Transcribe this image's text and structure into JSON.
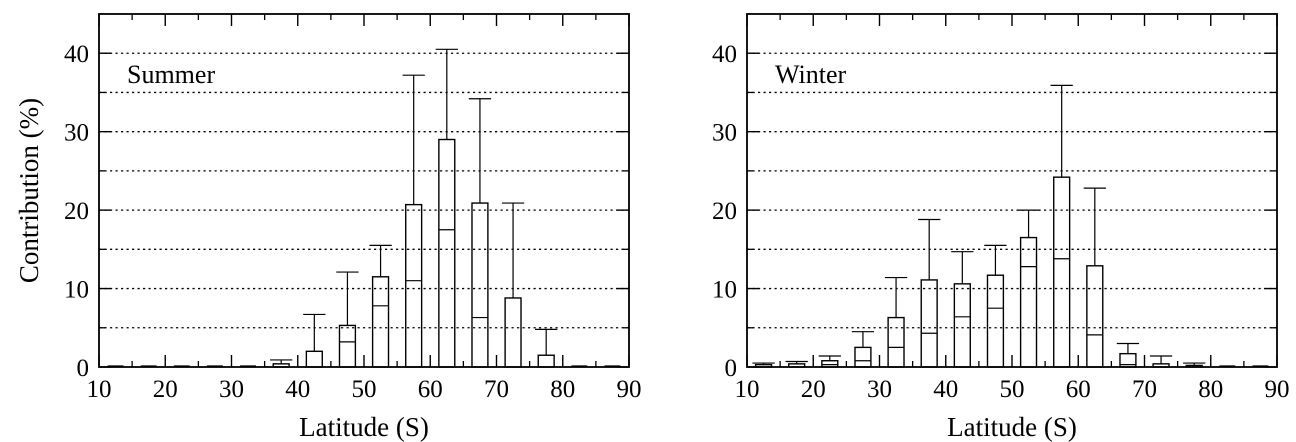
{
  "chart_data": [
    {
      "type": "bar",
      "panel_label": "Summer",
      "xlabel": "Latitude (S)",
      "ylabel": "Contribution (%)",
      "xlim": [
        10,
        90
      ],
      "ylim": [
        0,
        45
      ],
      "xticks": [
        10,
        20,
        30,
        40,
        50,
        60,
        70,
        80,
        90
      ],
      "yticks": [
        0,
        10,
        20,
        30,
        40
      ],
      "grid": "horizontal dotted every 5",
      "x": [
        12.5,
        17.5,
        22.5,
        27.5,
        32.5,
        37.5,
        42.5,
        47.5,
        52.5,
        57.5,
        62.5,
        67.5,
        72.5,
        77.5,
        82.5,
        87.5
      ],
      "values": [
        0,
        0,
        0,
        0,
        0,
        0.4,
        2.0,
        5.3,
        11.5,
        20.7,
        29.0,
        20.9,
        8.8,
        1.5,
        0,
        0
      ],
      "box_low": [
        0,
        0,
        0,
        0,
        0,
        0,
        0,
        3.2,
        7.8,
        11.0,
        17.5,
        6.3,
        0,
        0,
        0,
        0
      ],
      "err_high": [
        0,
        0,
        0,
        0,
        0,
        0.9,
        6.7,
        12.1,
        15.5,
        37.2,
        40.5,
        34.2,
        20.9,
        4.8,
        0,
        0
      ]
    },
    {
      "type": "bar",
      "panel_label": "Winter",
      "xlabel": "Latitude (S)",
      "ylabel": "",
      "xlim": [
        10,
        90
      ],
      "ylim": [
        0,
        45
      ],
      "xticks": [
        10,
        20,
        30,
        40,
        50,
        60,
        70,
        80,
        90
      ],
      "yticks": [
        0,
        10,
        20,
        30,
        40
      ],
      "grid": "horizontal dotted every 5",
      "x": [
        12.5,
        17.5,
        22.5,
        27.5,
        32.5,
        37.5,
        42.5,
        47.5,
        52.5,
        57.5,
        62.5,
        67.5,
        72.5,
        77.5,
        82.5,
        87.5
      ],
      "values": [
        0.3,
        0.4,
        0.8,
        2.5,
        6.3,
        11.1,
        10.6,
        11.7,
        16.5,
        24.2,
        12.9,
        1.7,
        0.4,
        0.2,
        0,
        0
      ],
      "box_low": [
        0,
        0,
        0.3,
        0.8,
        2.5,
        4.3,
        6.4,
        7.5,
        12.8,
        13.8,
        4.1,
        0.3,
        0,
        0,
        0,
        0
      ],
      "err_high": [
        0.5,
        0.7,
        1.4,
        4.5,
        11.4,
        18.8,
        14.7,
        15.5,
        20.0,
        35.9,
        22.8,
        3.0,
        1.4,
        0.5,
        0,
        0
      ]
    }
  ]
}
